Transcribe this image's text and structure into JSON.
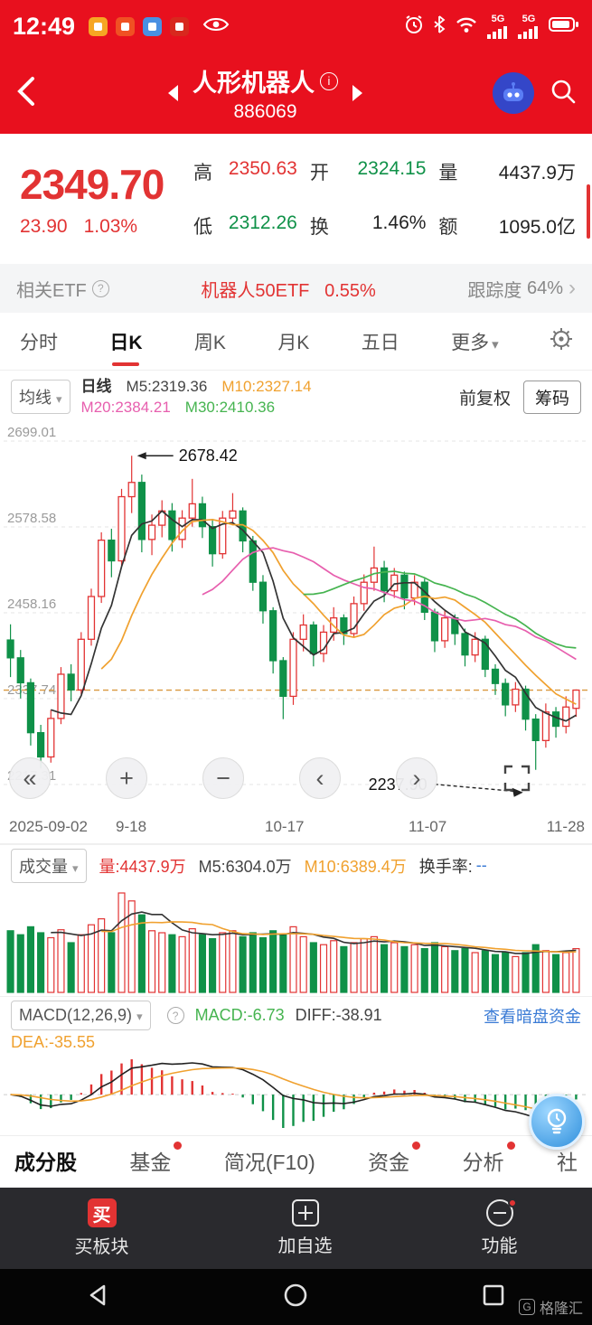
{
  "colors": {
    "header_red": "#e8101e",
    "up_red": "#e23333",
    "down_green": "#0f9148",
    "orange": "#f0a12f",
    "pink": "#e75fae",
    "ma_green": "#46b450",
    "ma_dark": "#333333",
    "link_blue": "#3a7bd5",
    "price_line": "#d9983f"
  },
  "icons": {
    "caret_down": "▾",
    "chevron_right": "›",
    "info": "i",
    "help": "?",
    "rewind": "«",
    "zoom_in": "+",
    "zoom_out": "−",
    "prev": "‹",
    "next": "›"
  },
  "status_bar": {
    "time": "12:49",
    "network": "5G"
  },
  "header": {
    "title": "人形机器人",
    "code": "886069"
  },
  "quote": {
    "price": "2349.70",
    "change": "23.90",
    "change_pct": "1.03%",
    "stats": [
      {
        "label": "高",
        "value": "2350.63"
      },
      {
        "label": "开",
        "value": "2324.15"
      },
      {
        "label": "量",
        "value": "4437.9万"
      },
      {
        "label": "低",
        "value": "2312.26"
      },
      {
        "label": "换",
        "value": "1.46%"
      },
      {
        "label": "额",
        "value": "1095.0亿"
      }
    ]
  },
  "etf_bar": {
    "label": "相关ETF",
    "name": "机器人50ETF",
    "change": "0.55%",
    "tracking_label": "跟踪度",
    "tracking_value": "64%"
  },
  "period_tabs": [
    "分时",
    "日K",
    "周K",
    "月K",
    "五日",
    "更多"
  ],
  "ma_legend": {
    "selector": "均线",
    "period": "日线",
    "m5": "M5:2319.36",
    "m10": "M10:2327.14",
    "m20": "M20:2384.21",
    "m30": "M30:2410.36",
    "adjust": "前复权",
    "chips": "筹码"
  },
  "chart_data": {
    "type": "candlestick",
    "y_ticks": [
      "2699.01",
      "2578.58",
      "2458.16",
      "2337.74",
      "2217.31"
    ],
    "y_range": [
      2217.31,
      2699.01
    ],
    "x_labels": [
      "2025-09-02",
      "9-18",
      "10-17",
      "11-07",
      "11-28"
    ],
    "high_annotation": "2678.42",
    "low_annotation": "2237.90",
    "current_price": 2349.7,
    "candles": [
      [
        2420,
        2442,
        2368,
        2395
      ],
      [
        2395,
        2406,
        2338,
        2360
      ],
      [
        2360,
        2366,
        2272,
        2290
      ],
      [
        2290,
        2301,
        2240,
        2256
      ],
      [
        2256,
        2322,
        2248,
        2310
      ],
      [
        2310,
        2382,
        2302,
        2372
      ],
      [
        2372,
        2386,
        2334,
        2350
      ],
      [
        2350,
        2431,
        2344,
        2421
      ],
      [
        2421,
        2492,
        2412,
        2481
      ],
      [
        2481,
        2571,
        2472,
        2560
      ],
      [
        2560,
        2576,
        2508,
        2531
      ],
      [
        2531,
        2632,
        2524,
        2621
      ],
      [
        2621,
        2678.42,
        2598,
        2641
      ],
      [
        2641,
        2652,
        2543,
        2561
      ],
      [
        2561,
        2596,
        2539,
        2581
      ],
      [
        2581,
        2616,
        2564,
        2601
      ],
      [
        2601,
        2612,
        2544,
        2561
      ],
      [
        2561,
        2602,
        2549,
        2591
      ],
      [
        2591,
        2646,
        2579,
        2611
      ],
      [
        2611,
        2621,
        2563,
        2579
      ],
      [
        2579,
        2590,
        2523,
        2541
      ],
      [
        2541,
        2601,
        2534,
        2591
      ],
      [
        2591,
        2626,
        2581,
        2601
      ],
      [
        2601,
        2606,
        2543,
        2559
      ],
      [
        2559,
        2566,
        2489,
        2501
      ],
      [
        2501,
        2511,
        2443,
        2461
      ],
      [
        2461,
        2466,
        2373,
        2391
      ],
      [
        2391,
        2396,
        2309,
        2341
      ],
      [
        2341,
        2431,
        2329,
        2421
      ],
      [
        2421,
        2456,
        2404,
        2441
      ],
      [
        2441,
        2446,
        2383,
        2401
      ],
      [
        2401,
        2441,
        2389,
        2431
      ],
      [
        2431,
        2466,
        2419,
        2451
      ],
      [
        2451,
        2456,
        2413,
        2429
      ],
      [
        2429,
        2481,
        2424,
        2471
      ],
      [
        2471,
        2512,
        2461,
        2501
      ],
      [
        2501,
        2551,
        2489,
        2521
      ],
      [
        2521,
        2531,
        2473,
        2489
      ],
      [
        2489,
        2521,
        2479,
        2511
      ],
      [
        2511,
        2516,
        2463,
        2479
      ],
      [
        2479,
        2511,
        2469,
        2501
      ],
      [
        2501,
        2506,
        2448,
        2459
      ],
      [
        2459,
        2464,
        2403,
        2419
      ],
      [
        2419,
        2461,
        2409,
        2451
      ],
      [
        2451,
        2456,
        2413,
        2429
      ],
      [
        2429,
        2436,
        2383,
        2399
      ],
      [
        2399,
        2431,
        2389,
        2421
      ],
      [
        2421,
        2426,
        2368,
        2379
      ],
      [
        2379,
        2386,
        2343,
        2359
      ],
      [
        2359,
        2366,
        2313,
        2329
      ],
      [
        2329,
        2361,
        2319,
        2351
      ],
      [
        2351,
        2356,
        2293,
        2309
      ],
      [
        2309,
        2316,
        2237.9,
        2279
      ],
      [
        2279,
        2331,
        2269,
        2319
      ],
      [
        2319,
        2326,
        2283,
        2299
      ],
      [
        2299,
        2341,
        2289,
        2326
      ],
      [
        2324.15,
        2350.63,
        2312.26,
        2349.7
      ]
    ],
    "volumes": [
      62,
      58,
      66,
      60,
      55,
      63,
      50,
      58,
      68,
      74,
      60,
      100,
      92,
      78,
      62,
      60,
      58,
      56,
      64,
      58,
      54,
      60,
      62,
      56,
      60,
      55,
      62,
      58,
      66,
      56,
      50,
      48,
      52,
      46,
      50,
      54,
      56,
      48,
      50,
      46,
      48,
      44,
      50,
      46,
      42,
      44,
      40,
      42,
      38,
      40,
      36,
      40,
      48,
      42,
      38,
      40,
      44
    ],
    "ma_periods": {
      "m5": 5,
      "m10": 10,
      "m20": 20,
      "m30": 30
    }
  },
  "volume_header": {
    "selector": "成交量",
    "vol": "量:4437.9万",
    "m5": "M5:6304.0万",
    "m10": "M10:6389.4万",
    "turnover_label": "换手率:",
    "turnover_value": "--"
  },
  "macd_header": {
    "selector": "MACD(12,26,9)",
    "macd": "MACD:-6.73",
    "diff": "DIFF:-38.91",
    "dea": "DEA:-35.55",
    "link": "查看暗盘资金"
  },
  "bottom_tabs": [
    {
      "label": "成分股"
    },
    {
      "label": "基金"
    },
    {
      "label": "简况(F10)"
    },
    {
      "label": "资金"
    },
    {
      "label": "分析"
    },
    {
      "label": "社"
    }
  ],
  "bottom_nav": [
    {
      "label": "买板块",
      "icon_text": "买"
    },
    {
      "label": "加自选"
    },
    {
      "label": "功能"
    }
  ],
  "watermark": {
    "logo": "G",
    "text": "格隆汇"
  }
}
